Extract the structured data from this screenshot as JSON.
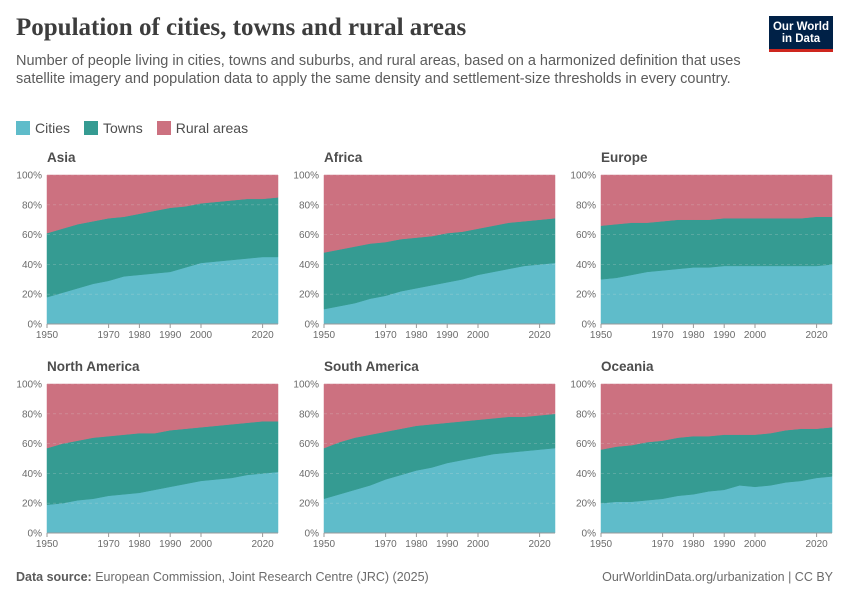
{
  "header": {
    "title": "Population of cities, towns and rural areas",
    "subtitle": "Number of people living in cities, towns and suburbs, and rural areas, based on a harmonized definition that uses satellite imagery and population data to apply the same density and settlement-size thresholds in every country.",
    "logo_line1": "Our World",
    "logo_line2": "in Data"
  },
  "legend": [
    {
      "label": "Cities",
      "color": "#5fbcca"
    },
    {
      "label": "Towns",
      "color": "#359b92"
    },
    {
      "label": "Rural areas",
      "color": "#cc7180"
    }
  ],
  "footer": {
    "source_label": "Data source:",
    "source_text": "European Commission, Joint Research Centre (JRC) (2025)",
    "right_text": "OurWorldinData.org/urbanization | CC BY"
  },
  "chart_data": [
    {
      "type": "area",
      "stacked": true,
      "title": "Asia",
      "x": [
        1950,
        1955,
        1960,
        1965,
        1970,
        1975,
        1980,
        1985,
        1990,
        1995,
        2000,
        2005,
        2010,
        2015,
        2020,
        2025
      ],
      "series": [
        {
          "name": "Cities",
          "values": [
            18,
            21,
            24,
            27,
            29,
            32,
            33,
            34,
            35,
            38,
            41,
            42,
            43,
            44,
            45,
            45
          ]
        },
        {
          "name": "Towns",
          "values": [
            43,
            43,
            43,
            42,
            42,
            40,
            41,
            42,
            43,
            41,
            40,
            40,
            40,
            40,
            39,
            40
          ]
        },
        {
          "name": "Rural areas",
          "values": [
            39,
            36,
            33,
            31,
            29,
            28,
            26,
            24,
            22,
            21,
            19,
            18,
            17,
            16,
            16,
            15
          ]
        }
      ],
      "x_ticks": [
        1950,
        1970,
        1980,
        1990,
        2000,
        2020
      ],
      "y_ticks": [
        "0%",
        "20%",
        "40%",
        "60%",
        "80%",
        "100%"
      ],
      "ylim": [
        0,
        100
      ]
    },
    {
      "type": "area",
      "stacked": true,
      "title": "Africa",
      "x": [
        1950,
        1955,
        1960,
        1965,
        1970,
        1975,
        1980,
        1985,
        1990,
        1995,
        2000,
        2005,
        2010,
        2015,
        2020,
        2025
      ],
      "series": [
        {
          "name": "Cities",
          "values": [
            10,
            12,
            14,
            17,
            19,
            22,
            24,
            26,
            28,
            30,
            33,
            35,
            37,
            39,
            40,
            41
          ]
        },
        {
          "name": "Towns",
          "values": [
            38,
            38,
            38,
            37,
            36,
            35,
            34,
            33,
            33,
            32,
            31,
            31,
            31,
            30,
            30,
            30
          ]
        },
        {
          "name": "Rural areas",
          "values": [
            52,
            50,
            48,
            46,
            45,
            43,
            42,
            41,
            39,
            38,
            36,
            34,
            32,
            31,
            30,
            29
          ]
        }
      ],
      "x_ticks": [
        1950,
        1970,
        1980,
        1990,
        2000,
        2020
      ],
      "y_ticks": [
        "0%",
        "20%",
        "40%",
        "60%",
        "80%",
        "100%"
      ],
      "ylim": [
        0,
        100
      ]
    },
    {
      "type": "area",
      "stacked": true,
      "title": "Europe",
      "x": [
        1950,
        1955,
        1960,
        1965,
        1970,
        1975,
        1980,
        1985,
        1990,
        1995,
        2000,
        2005,
        2010,
        2015,
        2020,
        2025
      ],
      "series": [
        {
          "name": "Cities",
          "values": [
            30,
            31,
            33,
            35,
            36,
            37,
            38,
            38,
            39,
            39,
            39,
            39,
            39,
            39,
            39,
            40
          ]
        },
        {
          "name": "Towns",
          "values": [
            36,
            36,
            35,
            33,
            33,
            33,
            32,
            32,
            32,
            32,
            32,
            32,
            32,
            32,
            33,
            32
          ]
        },
        {
          "name": "Rural areas",
          "values": [
            34,
            33,
            32,
            32,
            31,
            30,
            30,
            30,
            29,
            29,
            29,
            29,
            29,
            29,
            28,
            28
          ]
        }
      ],
      "x_ticks": [
        1950,
        1970,
        1980,
        1990,
        2000,
        2020
      ],
      "y_ticks": [
        "0%",
        "20%",
        "40%",
        "60%",
        "80%",
        "100%"
      ],
      "ylim": [
        0,
        100
      ]
    },
    {
      "type": "area",
      "stacked": true,
      "title": "North America",
      "x": [
        1950,
        1955,
        1960,
        1965,
        1970,
        1975,
        1980,
        1985,
        1990,
        1995,
        2000,
        2005,
        2010,
        2015,
        2020,
        2025
      ],
      "series": [
        {
          "name": "Cities",
          "values": [
            19,
            20,
            22,
            23,
            25,
            26,
            27,
            29,
            31,
            33,
            35,
            36,
            37,
            39,
            40,
            41
          ]
        },
        {
          "name": "Towns",
          "values": [
            38,
            40,
            40,
            41,
            40,
            40,
            40,
            38,
            38,
            37,
            36,
            36,
            36,
            35,
            35,
            34
          ]
        },
        {
          "name": "Rural areas",
          "values": [
            43,
            40,
            38,
            36,
            35,
            34,
            33,
            33,
            31,
            30,
            29,
            28,
            27,
            26,
            25,
            25
          ]
        }
      ],
      "x_ticks": [
        1950,
        1970,
        1980,
        1990,
        2000,
        2020
      ],
      "y_ticks": [
        "0%",
        "20%",
        "40%",
        "60%",
        "80%",
        "100%"
      ],
      "ylim": [
        0,
        100
      ]
    },
    {
      "type": "area",
      "stacked": true,
      "title": "South America",
      "x": [
        1950,
        1955,
        1960,
        1965,
        1970,
        1975,
        1980,
        1985,
        1990,
        1995,
        2000,
        2005,
        2010,
        2015,
        2020,
        2025
      ],
      "series": [
        {
          "name": "Cities",
          "values": [
            23,
            26,
            29,
            32,
            36,
            39,
            42,
            44,
            47,
            49,
            51,
            53,
            54,
            55,
            56,
            57
          ]
        },
        {
          "name": "Towns",
          "values": [
            34,
            35,
            35,
            34,
            32,
            31,
            30,
            29,
            27,
            26,
            25,
            24,
            24,
            23,
            23,
            23
          ]
        },
        {
          "name": "Rural areas",
          "values": [
            43,
            39,
            36,
            34,
            32,
            30,
            28,
            27,
            26,
            25,
            24,
            23,
            22,
            22,
            21,
            20
          ]
        }
      ],
      "x_ticks": [
        1950,
        1970,
        1980,
        1990,
        2000,
        2020
      ],
      "y_ticks": [
        "0%",
        "20%",
        "40%",
        "60%",
        "80%",
        "100%"
      ],
      "ylim": [
        0,
        100
      ]
    },
    {
      "type": "area",
      "stacked": true,
      "title": "Oceania",
      "x": [
        1950,
        1955,
        1960,
        1965,
        1970,
        1975,
        1980,
        1985,
        1990,
        1995,
        2000,
        2005,
        2010,
        2015,
        2020,
        2025
      ],
      "series": [
        {
          "name": "Cities",
          "values": [
            20,
            21,
            21,
            22,
            23,
            25,
            26,
            28,
            29,
            32,
            31,
            32,
            34,
            35,
            37,
            38
          ]
        },
        {
          "name": "Towns",
          "values": [
            36,
            37,
            38,
            39,
            39,
            39,
            39,
            37,
            37,
            34,
            35,
            35,
            35,
            35,
            33,
            33
          ]
        },
        {
          "name": "Rural areas",
          "values": [
            44,
            42,
            41,
            39,
            38,
            36,
            35,
            35,
            34,
            34,
            34,
            33,
            31,
            30,
            30,
            29
          ]
        }
      ],
      "x_ticks": [
        1950,
        1970,
        1980,
        1990,
        2000,
        2020
      ],
      "y_ticks": [
        "0%",
        "20%",
        "40%",
        "60%",
        "80%",
        "100%"
      ],
      "ylim": [
        0,
        100
      ]
    }
  ]
}
